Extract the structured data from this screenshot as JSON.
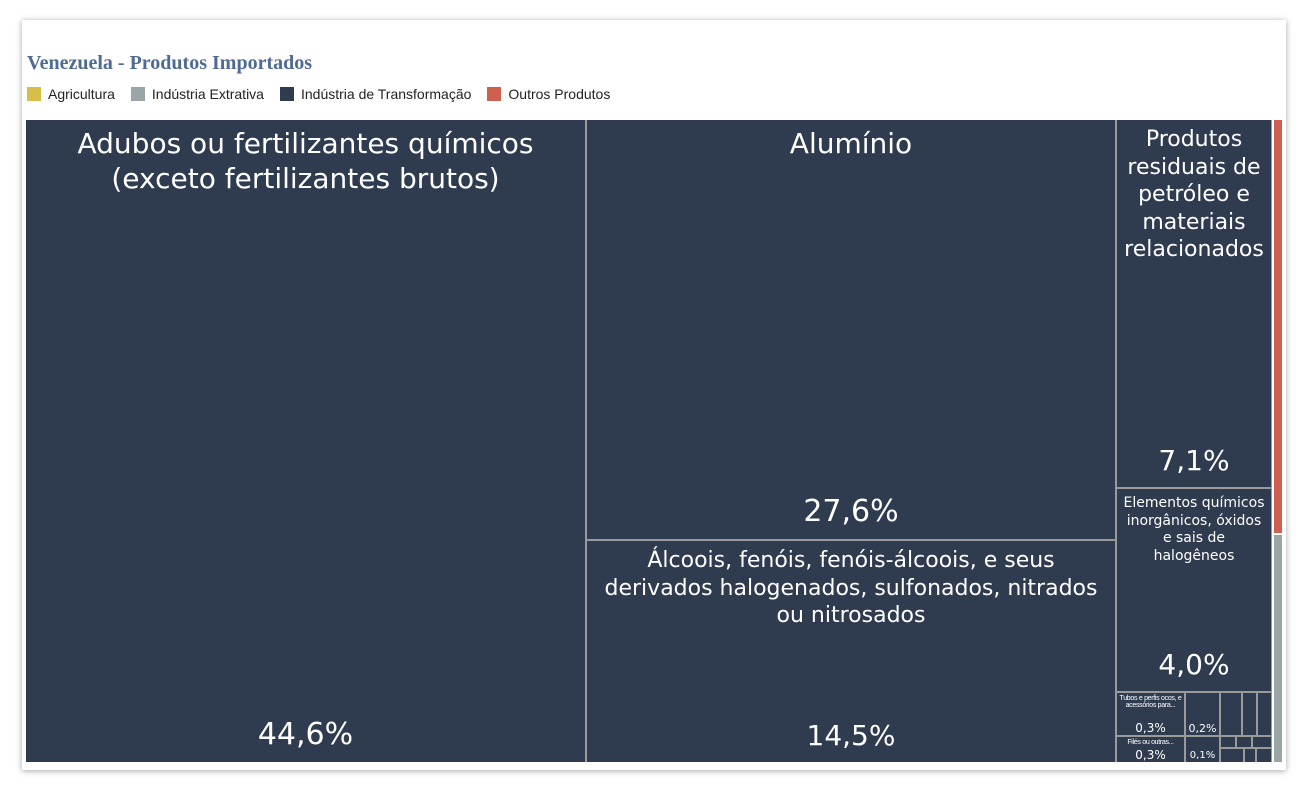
{
  "title": "Venezuela - Produtos Importados",
  "legend": [
    {
      "label": "Agricultura",
      "color": "#d9bd4a"
    },
    {
      "label": "Indústria Extrativa",
      "color": "#99a5a6"
    },
    {
      "label": "Indústria de Transformação",
      "color": "#2f3b4e"
    },
    {
      "label": "Outros Produtos",
      "color": "#cf5f4e"
    }
  ],
  "chart_data": {
    "type": "treemap",
    "title": "Venezuela - Produtos Importados",
    "items": [
      {
        "label": "Adubos ou fertilizantes químicos (exceto fertilizantes brutos)",
        "value": 44.6,
        "value_label": "44,6%",
        "category": "Indústria de Transformação"
      },
      {
        "label": "Alumínio",
        "value": 27.6,
        "value_label": "27,6%",
        "category": "Indústria de Transformação"
      },
      {
        "label": "Álcoois, fenóis, fenóis-álcoois, e seus derivados halogenados, sulfonados, nitrados ou nitrosados",
        "value": 14.5,
        "value_label": "14,5%",
        "category": "Indústria de Transformação"
      },
      {
        "label": "Produtos residuais de petróleo e materiais relacionados",
        "value": 7.1,
        "value_label": "7,1%",
        "category": "Indústria de Transformação"
      },
      {
        "label": "Elementos químicos inorgânicos, óxidos e sais de halogêneos",
        "value": 4.0,
        "value_label": "4,0%",
        "category": "Indústria de Transformação"
      },
      {
        "label": "Tubos e perfis ocos, e acessórios para...",
        "value": 0.3,
        "value_label": "0,3%",
        "category": "Indústria de Transformação"
      },
      {
        "label": "",
        "value": 0.2,
        "value_label": "0,2%",
        "category": "Indústria de Transformação"
      },
      {
        "label": "Filés ou outras...",
        "value": 0.3,
        "value_label": "0,3%",
        "category": "Indústria de Transformação"
      },
      {
        "label": "",
        "value": 0.1,
        "value_label": "0,1%",
        "category": "Indústria de Transformação"
      }
    ]
  }
}
